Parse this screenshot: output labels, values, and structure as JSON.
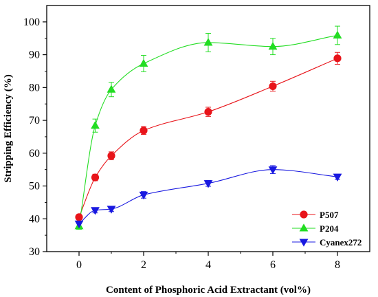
{
  "chart_data": {
    "type": "scatter",
    "title": "",
    "xlabel": "Content of Phosphoric Acid Extractant (vol%)",
    "ylabel": "Stripping Efficiency (%)",
    "xlim": [
      -1,
      9
    ],
    "ylim": [
      30,
      105
    ],
    "x_ticks": [
      "0",
      "2",
      "4",
      "6",
      "8"
    ],
    "y_ticks": [
      "30",
      "40",
      "50",
      "60",
      "70",
      "80",
      "90",
      "100"
    ],
    "grid": false,
    "legend_position": "bottom-right",
    "x": [
      0,
      0.5,
      1,
      2,
      4,
      6,
      8
    ],
    "series": [
      {
        "name": "P507",
        "marker": "circle",
        "color": "#e8141a",
        "values": [
          40.5,
          52.6,
          59.2,
          66.9,
          72.6,
          80.4,
          88.9
        ],
        "errors": [
          0.8,
          1.0,
          1.2,
          1.2,
          1.4,
          1.5,
          1.8
        ]
      },
      {
        "name": "P204",
        "marker": "triangle-up",
        "color": "#22dd22",
        "values": [
          37.8,
          68.4,
          79.4,
          87.3,
          93.7,
          92.5,
          95.9
        ],
        "errors": [
          1.0,
          2.0,
          2.2,
          2.5,
          2.8,
          2.5,
          2.8
        ]
      },
      {
        "name": "Cyanex272",
        "marker": "triangle-down",
        "color": "#1818e0",
        "values": [
          38.5,
          42.6,
          43.0,
          47.3,
          50.8,
          55.0,
          52.8
        ],
        "errors": [
          0.8,
          0.8,
          0.8,
          1.0,
          0.9,
          1.2,
          0.8
        ]
      }
    ]
  }
}
